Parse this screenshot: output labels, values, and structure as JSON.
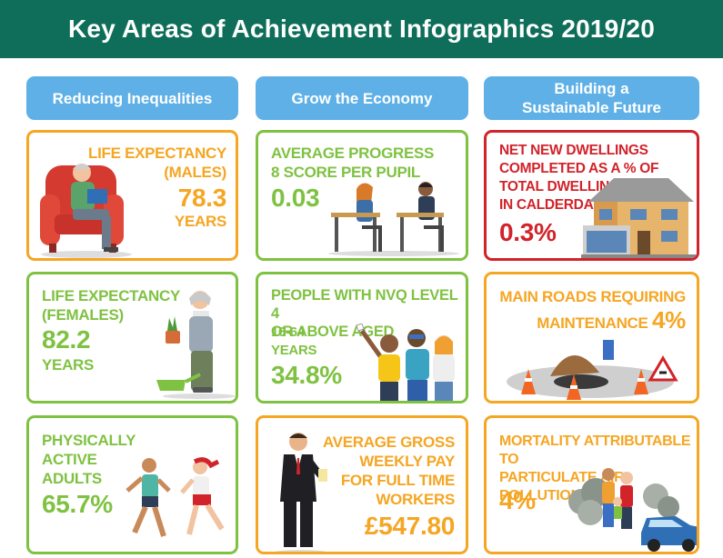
{
  "header": {
    "title": "Key Areas of Achievement Infographics 2019/20"
  },
  "columns": [
    {
      "label": "Reducing Inequalities"
    },
    {
      "label": "Grow the Economy"
    },
    {
      "label_line1": "Building a",
      "label_line2": "Sustainable Future"
    }
  ],
  "cards": {
    "life_expectancy_males": {
      "label_line1": "LIFE EXPECTANCY",
      "label_line2": "(MALES)",
      "value": "78.3",
      "unit": "YEARS"
    },
    "average_progress_8": {
      "label_line1": "AVERAGE PROGRESS",
      "label_line2": "8 SCORE PER PUPIL",
      "value": "0.03"
    },
    "net_new_dwellings": {
      "label_line1": "NET NEW DWELLINGS",
      "label_line2": "COMPLETED AS A % OF",
      "label_line3": "TOTAL DWELLINGS",
      "label_line4": "IN CALDERDALE",
      "value": "0.3%"
    },
    "life_expectancy_females": {
      "label_line1": "LIFE EXPECTANCY",
      "label_line2": "(FEMALES)",
      "value": "82.2",
      "unit": "YEARS"
    },
    "nvq_level_4": {
      "label_line1": "PEOPLE WITH NVQ LEVEL 4",
      "label_line2": "OR ABOVE AGED",
      "label_line3": "16-64",
      "label_line4": "YEARS",
      "value": "34.8%"
    },
    "main_roads_maintenance": {
      "label_line1": "MAIN ROADS REQUIRING",
      "label_line2": "MAINTENANCE",
      "value": "4%"
    },
    "physically_active_adults": {
      "label_line1": "PHYSICALLY",
      "label_line2": "ACTIVE",
      "label_line3": "ADULTS",
      "value": "65.7%"
    },
    "average_gross_weekly_pay": {
      "label_line1": "AVERAGE GROSS",
      "label_line2": "WEEKLY PAY",
      "label_line3": "FOR FULL TIME",
      "label_line4": "WORKERS",
      "value": "£547.80"
    },
    "mortality_particulate": {
      "label_line1": "MORTALITY ATTRIBUTABLE TO",
      "label_line2": "PARTICULATE AIR",
      "label_line3": "POLLUTION",
      "value": "4%"
    }
  },
  "colors": {
    "banner": "#0e6e5a",
    "column_header": "#5fb0e6",
    "green": "#7fc242",
    "orange": "#f5a623",
    "red": "#d2232a"
  },
  "icons": [
    "old-man-armchair-icon",
    "students-desks-icon",
    "house-icon",
    "gardener-woman-icon",
    "graduates-icon",
    "roadworks-icon",
    "runners-icon",
    "businessman-icon",
    "family-car-pollution-icon"
  ]
}
